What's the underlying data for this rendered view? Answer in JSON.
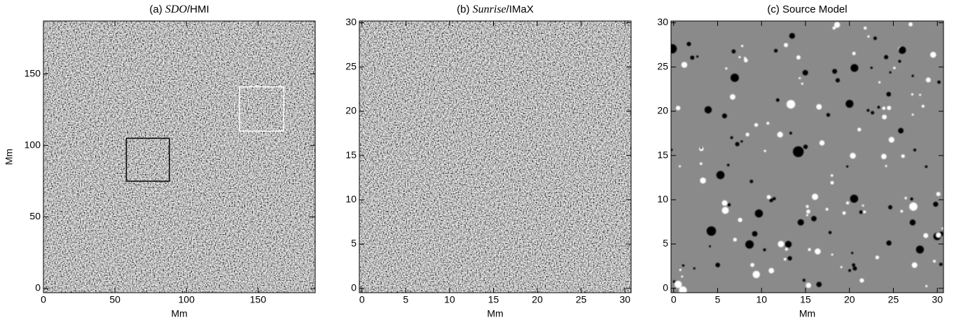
{
  "chart_data": [
    {
      "type": "image",
      "title_parts": [
        {
          "text": "(a) "
        },
        {
          "text": "SDO",
          "italic": true
        },
        {
          "text": "/HMI"
        }
      ],
      "xlabel": "Mm",
      "ylabel": "Mm",
      "xlim": [
        0,
        190
      ],
      "ylim": [
        -3,
        187
      ],
      "xticks": [
        0,
        50,
        100,
        150
      ],
      "yticks": [
        0,
        50,
        100,
        150
      ],
      "boxes": [
        {
          "x": [
            58,
            88
          ],
          "y": [
            75,
            105
          ],
          "color": "#000000"
        },
        {
          "x": [
            137,
            168
          ],
          "y": [
            110,
            141
          ],
          "color": "#ffffff"
        }
      ]
    },
    {
      "type": "image",
      "title_parts": [
        {
          "text": "(b) "
        },
        {
          "text": "Sunrise",
          "italic": true
        },
        {
          "text": "/IMaX"
        }
      ],
      "xlabel": "Mm",
      "xlim": [
        -0.3,
        30.7
      ],
      "ylim": [
        -0.5,
        30.2
      ],
      "xticks": [
        0,
        5,
        10,
        15,
        20,
        25,
        30
      ],
      "yticks": [
        0,
        5,
        10,
        15,
        20,
        25,
        30
      ]
    },
    {
      "type": "sources",
      "title_parts": [
        {
          "text": "(c) Source Model"
        }
      ],
      "xlabel": "Mm",
      "xlim": [
        -0.3,
        30.7
      ],
      "ylim": [
        -0.5,
        30.2
      ],
      "xticks": [
        0,
        5,
        10,
        15,
        20,
        25,
        30
      ],
      "yticks": [
        0,
        5,
        10,
        15,
        20,
        25,
        30
      ]
    }
  ]
}
